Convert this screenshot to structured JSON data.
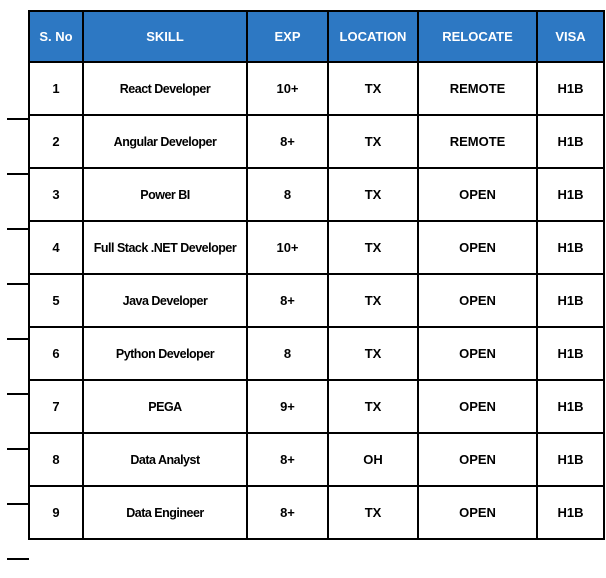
{
  "table": {
    "headers": [
      "S. No",
      "SKILL",
      "EXP",
      "LOCATION",
      "RELOCATE",
      "VISA"
    ],
    "rows": [
      [
        "1",
        "React Developer",
        "10+",
        "TX",
        "REMOTE",
        "H1B"
      ],
      [
        "2",
        "Angular Developer",
        "8+",
        "TX",
        "REMOTE",
        "H1B"
      ],
      [
        "3",
        "Power BI",
        "8",
        "TX",
        "OPEN",
        "H1B"
      ],
      [
        "4",
        "Full Stack .NET Developer",
        "10+",
        "TX",
        "OPEN",
        "H1B"
      ],
      [
        "5",
        "Java Developer",
        "8+",
        "TX",
        "OPEN",
        "H1B"
      ],
      [
        "6",
        "Python Developer",
        "8",
        "TX",
        "OPEN",
        "H1B"
      ],
      [
        "7",
        "PEGA",
        "9+",
        "TX",
        "OPEN",
        "H1B"
      ],
      [
        "8",
        "Data Analyst",
        "8+",
        "OH",
        "OPEN",
        "H1B"
      ],
      [
        "9",
        "Data Engineer",
        "8+",
        "TX",
        "OPEN",
        "H1B"
      ]
    ]
  },
  "colors": {
    "header_bg": "#2d78c3",
    "header_text": "#ffffff",
    "body_text": "#000000",
    "row_bg": "#ffffff",
    "border": "#000000",
    "page_bg": "#ffffff"
  }
}
